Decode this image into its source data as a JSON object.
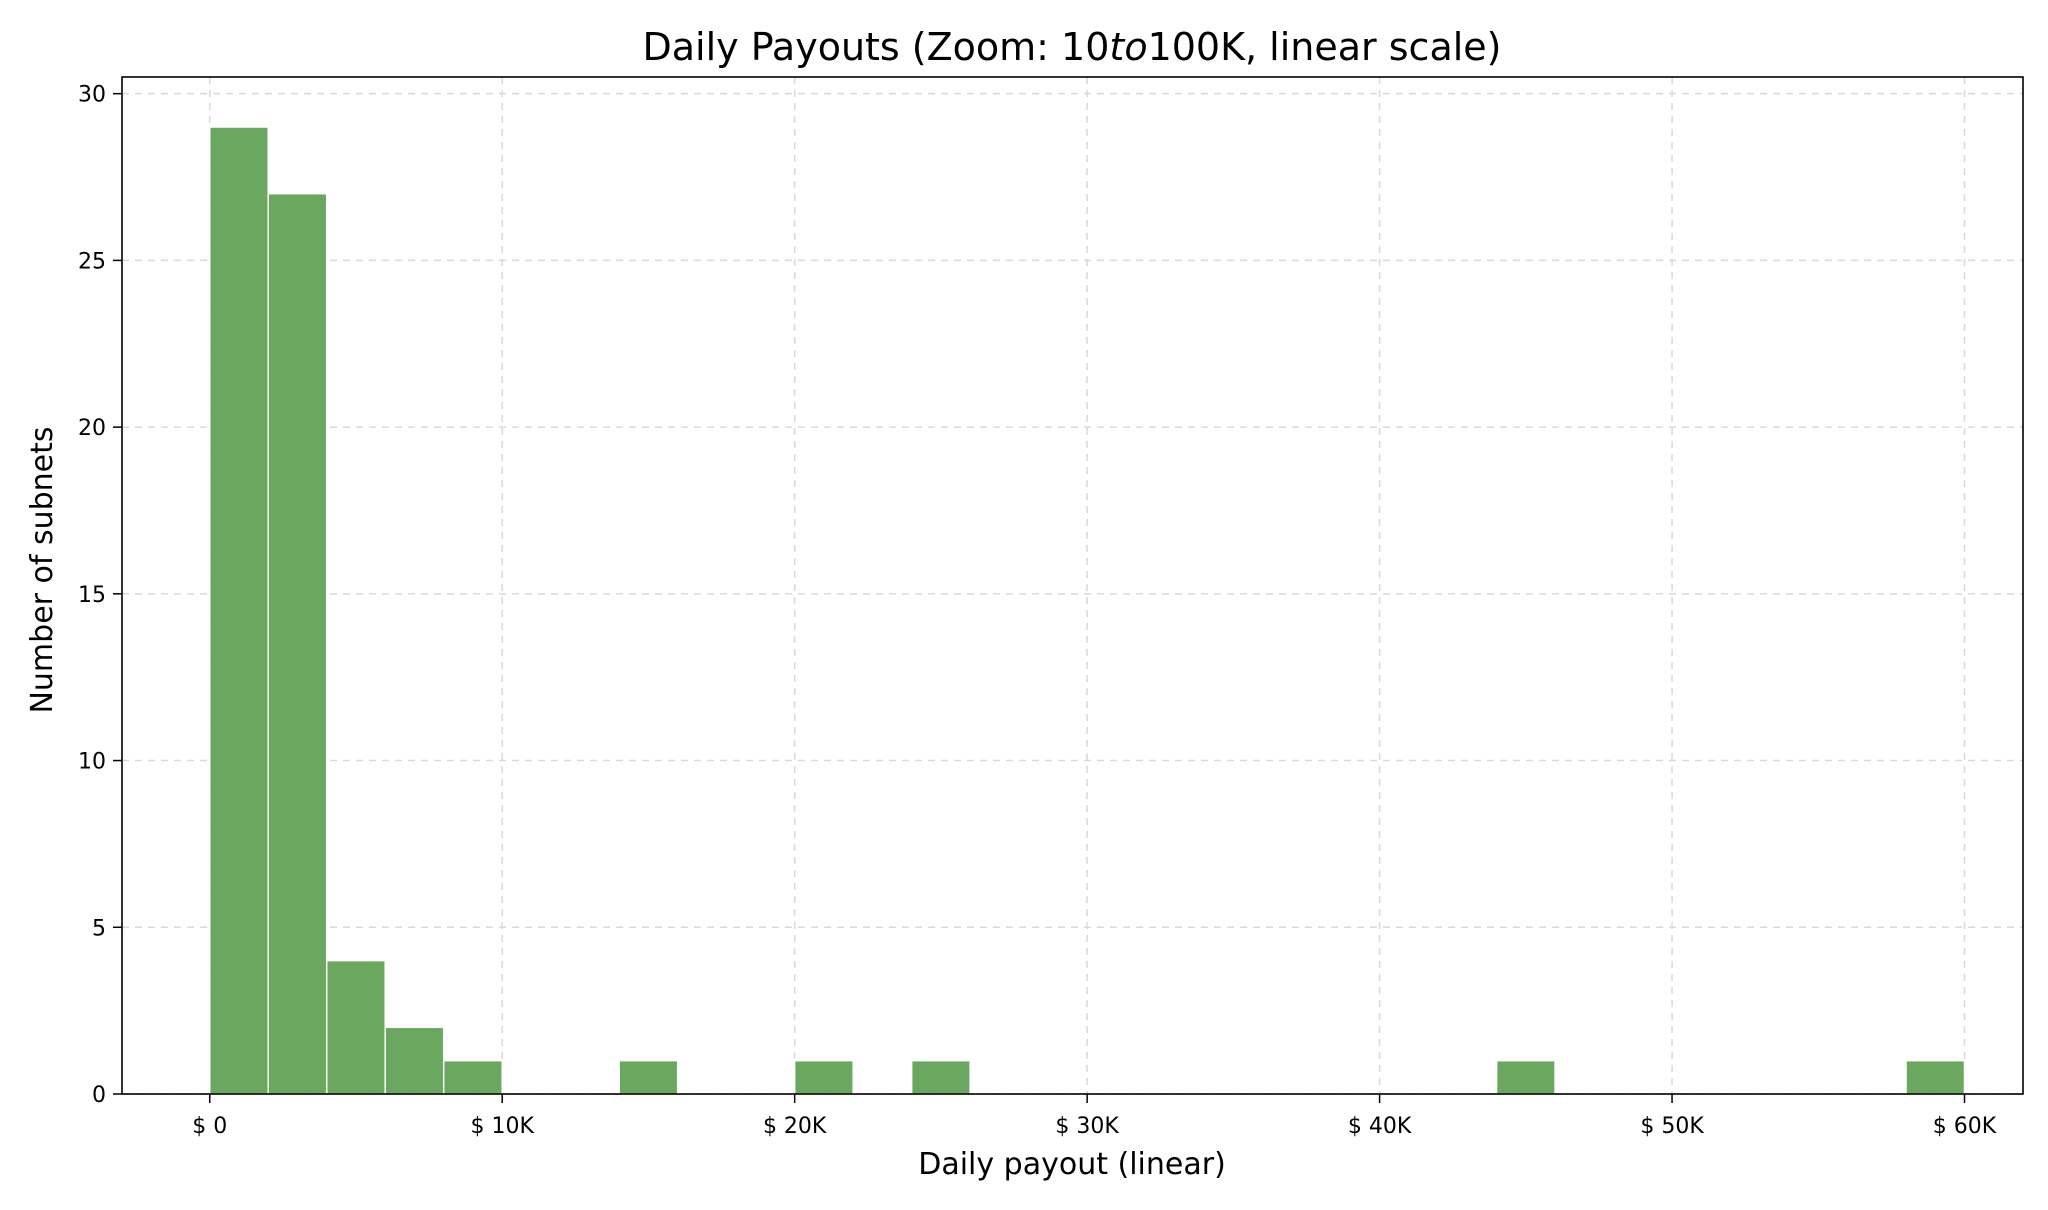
{
  "chart_data": {
    "type": "bar",
    "title": "Daily Payouts (Zoom: $10 to $100K, linear scale)",
    "title_parts": {
      "before": "Daily Payouts (Zoom: 10",
      "italic": "to",
      "after": "100K, linear scale)"
    },
    "xlabel": "Daily payout (linear)",
    "ylabel": "Number of subnets",
    "xlim": [
      -3000,
      62000
    ],
    "ylim": [
      0,
      30.5
    ],
    "grid": true,
    "bar_color": "#6aa85f",
    "x_ticks": [
      {
        "value": 0,
        "label": "$ 0"
      },
      {
        "value": 10000,
        "label": "$ 10K"
      },
      {
        "value": 20000,
        "label": "$ 20K"
      },
      {
        "value": 30000,
        "label": "$ 30K"
      },
      {
        "value": 40000,
        "label": "$ 40K"
      },
      {
        "value": 50000,
        "label": "$ 50K"
      },
      {
        "value": 60000,
        "label": "$ 60K"
      }
    ],
    "y_ticks": [
      {
        "value": 0,
        "label": "0"
      },
      {
        "value": 5,
        "label": "5"
      },
      {
        "value": 10,
        "label": "10"
      },
      {
        "value": 15,
        "label": "15"
      },
      {
        "value": 20,
        "label": "20"
      },
      {
        "value": 25,
        "label": "25"
      },
      {
        "value": 30,
        "label": "30"
      }
    ],
    "bins": [
      {
        "x0": 0,
        "x1": 2000,
        "count": 29
      },
      {
        "x0": 2000,
        "x1": 4000,
        "count": 27
      },
      {
        "x0": 4000,
        "x1": 6000,
        "count": 4
      },
      {
        "x0": 6000,
        "x1": 8000,
        "count": 2
      },
      {
        "x0": 8000,
        "x1": 10000,
        "count": 1
      },
      {
        "x0": 14000,
        "x1": 16000,
        "count": 1
      },
      {
        "x0": 20000,
        "x1": 22000,
        "count": 1
      },
      {
        "x0": 24000,
        "x1": 26000,
        "count": 1
      },
      {
        "x0": 44000,
        "x1": 46000,
        "count": 1
      },
      {
        "x0": 58000,
        "x1": 60000,
        "count": 1
      }
    ]
  }
}
